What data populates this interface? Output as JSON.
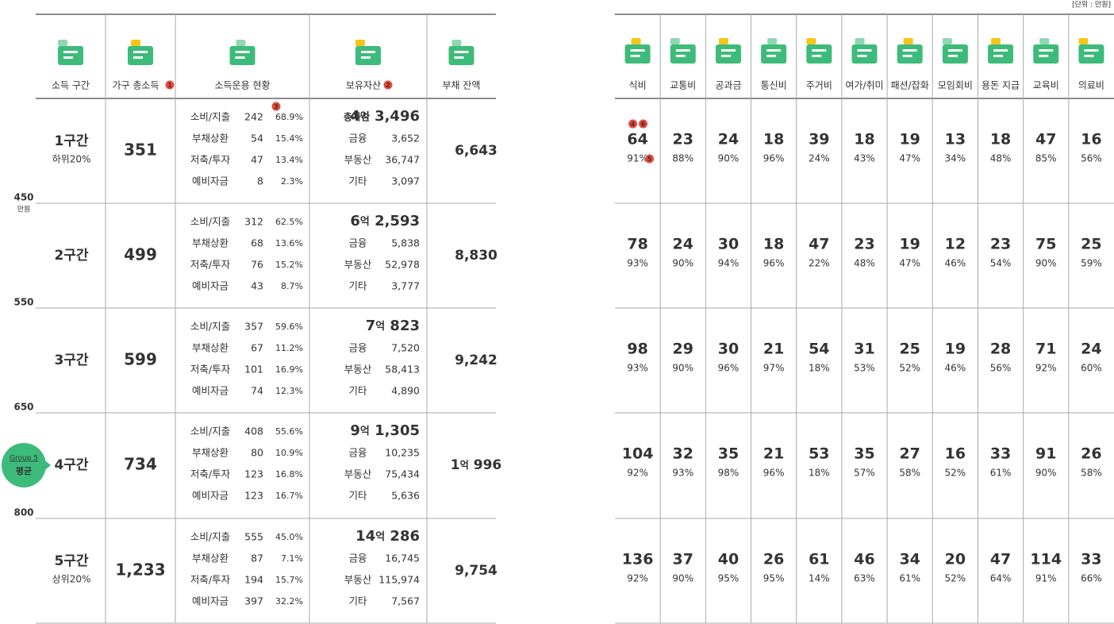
{
  "unit_note": "[단위 : 만원]",
  "income_scale": {
    "unit": "만원",
    "marks": [
      "450",
      "550",
      "650",
      "800"
    ]
  },
  "badge": {
    "group": "Group 5",
    "label": "평균"
  },
  "left": {
    "columns": [
      {
        "label": "소득 구간"
      },
      {
        "label": "가구 총소득",
        "note": "1"
      },
      {
        "label": "소득운용 현황"
      },
      {
        "label": "보유자산",
        "note": "2"
      },
      {
        "label": "부채 잔액"
      }
    ],
    "usage_note": "3",
    "rows": [
      {
        "tier": "1구간",
        "sub": "하위20%",
        "income": "351",
        "usage": [
          [
            "소비/지출",
            "242",
            "68.9%"
          ],
          [
            "부채상환",
            "54",
            "15.4%"
          ],
          [
            "저축/투자",
            "47",
            "13.4%"
          ],
          [
            "예비자금",
            "8",
            "2.3%"
          ]
        ],
        "assets": {
          "total_label": "총자산",
          "total": "4억 3,496",
          "items": [
            [
              "금융",
              "3,652"
            ],
            [
              "부동산",
              "36,747"
            ],
            [
              "기타",
              "3,097"
            ]
          ]
        },
        "debt": "6,643"
      },
      {
        "tier": "2구간",
        "income": "499",
        "usage": [
          [
            "소비/지출",
            "312",
            "62.5%"
          ],
          [
            "부채상환",
            "68",
            "13.6%"
          ],
          [
            "저축/투자",
            "76",
            "15.2%"
          ],
          [
            "예비자금",
            "43",
            "8.7%"
          ]
        ],
        "assets": {
          "total": "6억 2,593",
          "items": [
            [
              "금융",
              "5,838"
            ],
            [
              "부동산",
              "52,978"
            ],
            [
              "기타",
              "3,777"
            ]
          ]
        },
        "debt": "8,830"
      },
      {
        "tier": "3구간",
        "income": "599",
        "usage": [
          [
            "소비/지출",
            "357",
            "59.6%"
          ],
          [
            "부채상환",
            "67",
            "11.2%"
          ],
          [
            "저축/투자",
            "101",
            "16.9%"
          ],
          [
            "예비자금",
            "74",
            "12.3%"
          ]
        ],
        "assets": {
          "total": "7억 823",
          "items": [
            [
              "금융",
              "7,520"
            ],
            [
              "부동산",
              "58,413"
            ],
            [
              "기타",
              "4,890"
            ]
          ]
        },
        "debt": "9,242"
      },
      {
        "tier": "4구간",
        "income": "734",
        "usage": [
          [
            "소비/지출",
            "408",
            "55.6%"
          ],
          [
            "부채상환",
            "80",
            "10.9%"
          ],
          [
            "저축/투자",
            "123",
            "16.8%"
          ],
          [
            "예비자금",
            "123",
            "16.7%"
          ]
        ],
        "assets": {
          "total": "9억 1,305",
          "items": [
            [
              "금융",
              "10,235"
            ],
            [
              "부동산",
              "75,434"
            ],
            [
              "기타",
              "5,636"
            ]
          ]
        },
        "debt": "1억 996"
      },
      {
        "tier": "5구간",
        "sub": "상위20%",
        "income": "1,233",
        "usage": [
          [
            "소비/지출",
            "555",
            "45.0%"
          ],
          [
            "부채상환",
            "87",
            "7.1%"
          ],
          [
            "저축/투자",
            "194",
            "15.7%"
          ],
          [
            "예비자금",
            "397",
            "32.2%"
          ]
        ],
        "assets": {
          "total": "14억 286",
          "items": [
            [
              "금융",
              "16,745"
            ],
            [
              "부동산",
              "115,974"
            ],
            [
              "기타",
              "7,567"
            ]
          ]
        },
        "debt": "9,754"
      }
    ]
  },
  "right": {
    "categories": [
      "식비",
      "교통비",
      "공과금",
      "통신비",
      "주거비",
      "여가/취미",
      "패션/잡화",
      "모임회비",
      "용돈 지급",
      "교육비",
      "의료비"
    ],
    "notes": {
      "above": [
        "4",
        "6"
      ],
      "after_pct": "5"
    },
    "rows": [
      {
        "values": [
          "64",
          "23",
          "24",
          "18",
          "39",
          "18",
          "19",
          "13",
          "18",
          "47",
          "16"
        ],
        "pcts": [
          "91%",
          "88%",
          "90%",
          "96%",
          "24%",
          "43%",
          "47%",
          "34%",
          "48%",
          "85%",
          "56%"
        ]
      },
      {
        "values": [
          "78",
          "24",
          "30",
          "18",
          "47",
          "23",
          "19",
          "12",
          "23",
          "75",
          "25"
        ],
        "pcts": [
          "93%",
          "90%",
          "94%",
          "96%",
          "22%",
          "48%",
          "47%",
          "46%",
          "54%",
          "90%",
          "59%"
        ]
      },
      {
        "values": [
          "98",
          "29",
          "30",
          "21",
          "54",
          "31",
          "25",
          "19",
          "28",
          "71",
          "24"
        ],
        "pcts": [
          "93%",
          "90%",
          "96%",
          "97%",
          "18%",
          "53%",
          "52%",
          "46%",
          "56%",
          "92%",
          "60%"
        ]
      },
      {
        "values": [
          "104",
          "32",
          "35",
          "21",
          "53",
          "35",
          "27",
          "16",
          "33",
          "91",
          "26"
        ],
        "pcts": [
          "92%",
          "93%",
          "98%",
          "96%",
          "18%",
          "57%",
          "58%",
          "52%",
          "61%",
          "90%",
          "58%"
        ]
      },
      {
        "values": [
          "136",
          "37",
          "40",
          "26",
          "61",
          "46",
          "34",
          "20",
          "47",
          "114",
          "33"
        ],
        "pcts": [
          "92%",
          "90%",
          "95%",
          "95%",
          "14%",
          "63%",
          "61%",
          "52%",
          "64%",
          "91%",
          "66%"
        ]
      }
    ]
  }
}
